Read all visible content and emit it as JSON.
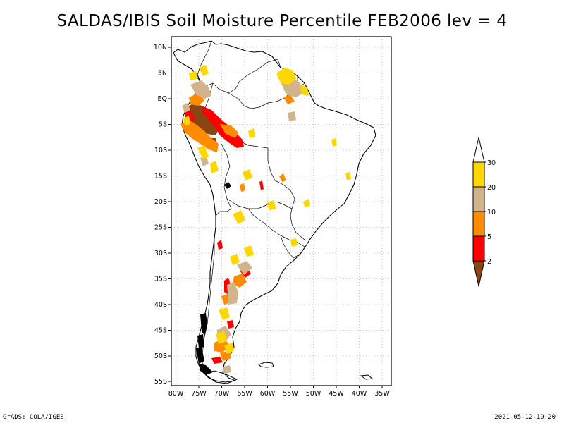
{
  "title": "SALDAS/IBIS Soil Moisture Percentile FEB2006 lev = 4",
  "footer_left": "GrADS: COLA/IGES",
  "footer_right": "2021-05-12-19:20",
  "map": {
    "lat_labels": [
      "10N",
      "5N",
      "EQ",
      "5S",
      "10S",
      "15S",
      "20S",
      "25S",
      "30S",
      "35S",
      "40S",
      "45S",
      "50S",
      "55S"
    ],
    "lon_labels": [
      "80W",
      "75W",
      "70W",
      "65W",
      "60W",
      "55W",
      "50W",
      "45W",
      "40W",
      "35W"
    ],
    "grid": "dotted",
    "domain": {
      "lon_min": -81,
      "lon_max": -33,
      "lat_min": -56,
      "lat_max": 12
    }
  },
  "legend": {
    "labels": [
      "30",
      "20",
      "10",
      "5",
      "2"
    ],
    "bins": [
      {
        "range": "above 30",
        "color": "#ffffff"
      },
      {
        "range": "20-30",
        "color": "#ffd700"
      },
      {
        "range": "10-20",
        "color": "#d2b48c"
      },
      {
        "range": "5-10",
        "color": "#ff8c00"
      },
      {
        "range": "2-5",
        "color": "#ff0000"
      },
      {
        "range": "below 2",
        "color": "#8b4513"
      }
    ]
  },
  "colors": {
    "dark_brown": "#8b4513",
    "red": "#ff0000",
    "orange": "#ff8c00",
    "tan": "#d2b48c",
    "gold": "#ffd700"
  }
}
